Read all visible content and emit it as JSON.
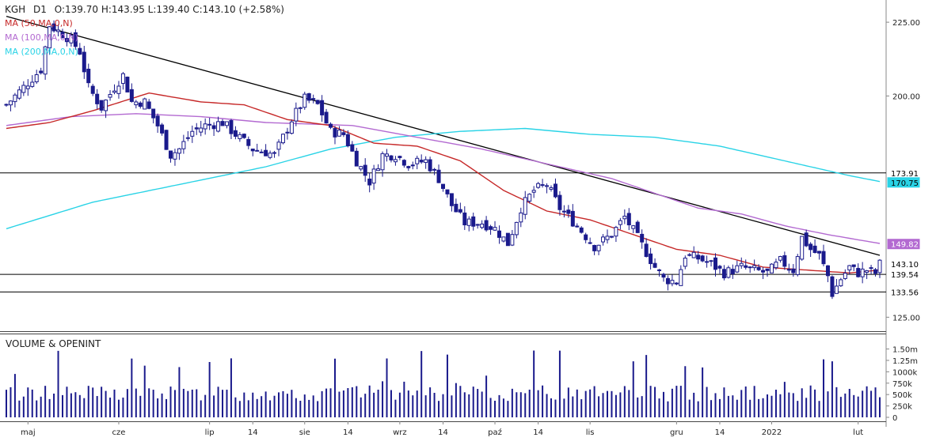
{
  "header": {
    "symbol": "KGH",
    "interval": "D1",
    "ohlc": "O:139.70  H:143.95  L:139.40  C:143.10  (+2.58%)"
  },
  "legend": [
    {
      "label": "MA (50,MA,0,N)",
      "color": "#c62828"
    },
    {
      "label": "MA (100,MA,0,N)",
      "color": "#b36ad1"
    },
    {
      "label": "MA (200,MA,0,N)",
      "color": "#29d3e6"
    }
  ],
  "colors": {
    "candle": "#1a1a8c",
    "volume": "#1a1a8c",
    "trendline": "#000000",
    "level": "#000000"
  },
  "chart_data": {
    "type": "line",
    "ylim": [
      120,
      232
    ],
    "price_ticks": [
      "225.00",
      "200.00",
      "125.00"
    ],
    "price_tick_values": [
      225,
      200,
      125
    ],
    "markers": [
      {
        "label": "173.91",
        "value": 173.91,
        "bg": "#ffffff",
        "fg": "#000000"
      },
      {
        "label": "170.75",
        "value": 170.75,
        "bg": "#29d3e6",
        "fg": "#000000"
      },
      {
        "label": "149.82",
        "value": 149.82,
        "bg": "#b36ad1",
        "fg": "#ffffff"
      },
      {
        "label": "143.10",
        "value": 143.1,
        "bg": "#ffffff",
        "fg": "#000000"
      },
      {
        "label": "139.54",
        "value": 139.54,
        "bg": "#ffffff",
        "fg": "#000000"
      },
      {
        "label": "133.56",
        "value": 133.56,
        "bg": "#ffffff",
        "fg": "#000000"
      }
    ],
    "levels": [
      173.91,
      139.54,
      133.56
    ],
    "x_labels": [
      {
        "label": "maj",
        "day": 5
      },
      {
        "label": "cze",
        "day": 26
      },
      {
        "label": "lip",
        "day": 47
      },
      {
        "label": "14",
        "day": 57
      },
      {
        "label": "sie",
        "day": 69
      },
      {
        "label": "14",
        "day": 79
      },
      {
        "label": "wrz",
        "day": 91
      },
      {
        "label": "14",
        "day": 101
      },
      {
        "label": "paź",
        "day": 113
      },
      {
        "label": "14",
        "day": 123
      },
      {
        "label": "lis",
        "day": 135
      },
      {
        "label": "gru",
        "day": 155
      },
      {
        "label": "14",
        "day": 165
      },
      {
        "label": "2022",
        "day": 177
      },
      {
        "label": "lut",
        "day": 197
      }
    ],
    "day_count": 203,
    "trendline": [
      [
        0,
        227
      ],
      [
        202,
        146
      ]
    ],
    "ma50": [
      [
        0,
        189
      ],
      [
        10,
        191
      ],
      [
        20,
        195
      ],
      [
        33,
        201
      ],
      [
        45,
        198
      ],
      [
        55,
        197
      ],
      [
        65,
        192
      ],
      [
        75,
        190
      ],
      [
        85,
        184
      ],
      [
        95,
        183
      ],
      [
        105,
        178
      ],
      [
        115,
        168
      ],
      [
        125,
        161
      ],
      [
        135,
        158
      ],
      [
        145,
        153
      ],
      [
        155,
        148
      ],
      [
        165,
        146
      ],
      [
        175,
        142
      ],
      [
        185,
        141
      ],
      [
        195,
        140
      ],
      [
        202,
        141
      ]
    ],
    "ma100": [
      [
        0,
        190
      ],
      [
        15,
        193
      ],
      [
        30,
        194
      ],
      [
        45,
        193
      ],
      [
        60,
        191
      ],
      [
        80,
        190
      ],
      [
        95,
        186
      ],
      [
        110,
        182
      ],
      [
        125,
        177
      ],
      [
        140,
        172
      ],
      [
        150,
        167
      ],
      [
        160,
        162
      ],
      [
        170,
        160
      ],
      [
        180,
        156
      ],
      [
        190,
        153
      ],
      [
        202,
        150
      ]
    ],
    "ma200": [
      [
        0,
        155
      ],
      [
        20,
        164
      ],
      [
        40,
        170
      ],
      [
        60,
        176
      ],
      [
        75,
        182
      ],
      [
        90,
        186
      ],
      [
        105,
        188
      ],
      [
        120,
        189
      ],
      [
        135,
        187
      ],
      [
        150,
        186
      ],
      [
        165,
        183
      ],
      [
        180,
        178
      ],
      [
        195,
        173
      ],
      [
        202,
        171
      ]
    ],
    "close_anchors": [
      [
        0,
        197
      ],
      [
        4,
        203
      ],
      [
        8,
        209
      ],
      [
        10,
        224
      ],
      [
        12,
        222
      ],
      [
        15,
        219
      ],
      [
        17,
        215
      ],
      [
        19,
        203
      ],
      [
        22,
        196
      ],
      [
        25,
        203
      ],
      [
        27,
        207
      ],
      [
        29,
        198
      ],
      [
        32,
        198
      ],
      [
        35,
        190
      ],
      [
        38,
        180
      ],
      [
        40,
        182
      ],
      [
        43,
        188
      ],
      [
        46,
        190
      ],
      [
        50,
        191
      ],
      [
        53,
        187
      ],
      [
        57,
        182
      ],
      [
        60,
        181
      ],
      [
        62,
        180
      ],
      [
        66,
        192
      ],
      [
        69,
        199
      ],
      [
        72,
        197
      ],
      [
        75,
        188
      ],
      [
        78,
        187
      ],
      [
        81,
        178
      ],
      [
        84,
        171
      ],
      [
        87,
        180
      ],
      [
        90,
        180
      ],
      [
        93,
        177
      ],
      [
        97,
        178
      ],
      [
        100,
        172
      ],
      [
        103,
        163
      ],
      [
        106,
        157
      ],
      [
        110,
        157
      ],
      [
        113,
        155
      ],
      [
        116,
        150
      ],
      [
        119,
        162
      ],
      [
        122,
        168
      ],
      [
        125,
        170
      ],
      [
        128,
        162
      ],
      [
        132,
        156
      ],
      [
        136,
        149
      ],
      [
        140,
        153
      ],
      [
        143,
        159
      ],
      [
        146,
        152
      ],
      [
        150,
        142
      ],
      [
        152,
        138
      ],
      [
        155,
        137
      ],
      [
        157,
        146
      ],
      [
        160,
        145
      ],
      [
        163,
        143
      ],
      [
        166,
        140
      ],
      [
        170,
        142
      ],
      [
        173,
        141
      ],
      [
        176,
        140
      ],
      [
        179,
        144
      ],
      [
        182,
        141
      ],
      [
        184,
        152
      ],
      [
        186,
        148
      ],
      [
        188,
        146
      ],
      [
        190,
        139
      ],
      [
        191,
        133
      ],
      [
        193,
        138
      ],
      [
        195,
        142
      ],
      [
        197,
        140
      ],
      [
        199,
        141
      ],
      [
        201,
        140
      ],
      [
        202,
        143
      ]
    ],
    "volume": {
      "ylim": [
        0,
        1700000
      ],
      "ticks": [
        "1.50m",
        "1.25m",
        "1000k",
        "750k",
        "500k",
        "250k",
        "0"
      ],
      "tick_values": [
        1500000,
        1250000,
        1000000,
        750000,
        500000,
        250000,
        0
      ]
    }
  },
  "volume_title": "VOLUME & OPENINT"
}
